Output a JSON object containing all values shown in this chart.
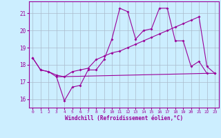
{
  "xlabel": "Windchill (Refroidissement éolien,°C)",
  "background_color": "#cceeff",
  "grid_color": "#aabbcc",
  "line_color": "#990099",
  "xlim": [
    -0.5,
    23.5
  ],
  "ylim": [
    15.5,
    21.7
  ],
  "yticks": [
    16,
    17,
    18,
    19,
    20,
    21
  ],
  "xticks": [
    0,
    1,
    2,
    3,
    4,
    5,
    6,
    7,
    8,
    9,
    10,
    11,
    12,
    13,
    14,
    15,
    16,
    17,
    18,
    19,
    20,
    21,
    22,
    23
  ],
  "series1_x": [
    0,
    1,
    2,
    3,
    4,
    5,
    6,
    7,
    8,
    9,
    10,
    11,
    12,
    13,
    14,
    15,
    16,
    17,
    18,
    19,
    20,
    21,
    22,
    23
  ],
  "series1_y": [
    18.4,
    17.7,
    17.6,
    17.3,
    15.9,
    16.7,
    16.8,
    17.7,
    17.7,
    18.3,
    19.5,
    21.3,
    21.1,
    19.5,
    20.0,
    20.1,
    21.3,
    21.3,
    19.4,
    19.4,
    17.9,
    18.2,
    17.5,
    17.5
  ],
  "series2_x": [
    3,
    22
  ],
  "series2_y": [
    17.3,
    17.5
  ],
  "series3_x": [
    0,
    1,
    2,
    3,
    4,
    5,
    6,
    7,
    8,
    9,
    10,
    11,
    12,
    13,
    14,
    15,
    16,
    17,
    18,
    19,
    20,
    21,
    22,
    23
  ],
  "series3_y": [
    18.4,
    17.7,
    17.6,
    17.4,
    17.3,
    17.6,
    17.7,
    17.8,
    18.3,
    18.5,
    18.7,
    18.8,
    19.0,
    19.2,
    19.4,
    19.6,
    19.8,
    20.0,
    20.2,
    20.4,
    20.6,
    20.8,
    17.9,
    17.5
  ]
}
